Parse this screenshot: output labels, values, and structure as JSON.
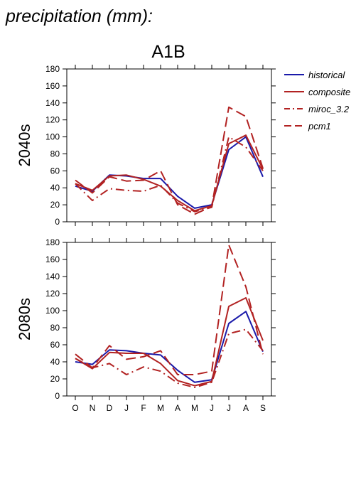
{
  "heading": "precipitation (mm):",
  "chart_data": {
    "type": "line",
    "title": "A1B",
    "categories": [
      "O",
      "N",
      "D",
      "J",
      "F",
      "M",
      "A",
      "M",
      "J",
      "J",
      "A",
      "S"
    ],
    "ylim": [
      0,
      180
    ],
    "yticks": [
      0,
      20,
      40,
      60,
      80,
      100,
      120,
      140,
      160,
      180
    ],
    "legend_position": "right",
    "legend": [
      {
        "name": "historical",
        "color": "#1a1aaa",
        "dash": "solid"
      },
      {
        "name": "composite",
        "color": "#b22222",
        "dash": "solid"
      },
      {
        "name": "miroc_3.2",
        "color": "#b22222",
        "dash": "dashdot"
      },
      {
        "name": "pcm1",
        "color": "#b22222",
        "dash": "longdash"
      }
    ],
    "panels": [
      {
        "label": "2040s",
        "series": [
          {
            "name": "historical",
            "values": [
              42,
              36,
              55,
              54,
              51,
              51,
              30,
              16,
              20,
              85,
              100,
              53
            ]
          },
          {
            "name": "composite",
            "values": [
              45,
              37,
              54,
              55,
              50,
              42,
              25,
              13,
              19,
              92,
              102,
              62
            ]
          },
          {
            "name": "miroc_3.2",
            "values": [
              45,
              25,
              39,
              37,
              36,
              43,
              22,
              12,
              17,
              100,
              88,
              60
            ]
          },
          {
            "name": "pcm1",
            "values": [
              49,
              34,
              53,
              48,
              49,
              60,
              20,
              9,
              18,
              135,
              124,
              63
            ]
          }
        ]
      },
      {
        "label": "2080s",
        "series": [
          {
            "name": "historical",
            "values": [
              40,
              37,
              54,
              53,
              50,
              48,
              30,
              16,
              19,
              85,
              99,
              52
            ]
          },
          {
            "name": "composite",
            "values": [
              44,
              32,
              51,
              50,
              50,
              38,
              18,
              12,
              17,
              105,
              115,
              65
            ]
          },
          {
            "name": "miroc_3.2",
            "values": [
              44,
              33,
              38,
              25,
              34,
              29,
              15,
              10,
              16,
              73,
              78,
              53
            ]
          },
          {
            "name": "pcm1",
            "values": [
              49,
              33,
              59,
              43,
              46,
              53,
              25,
              25,
              29,
              177,
              128,
              49
            ]
          }
        ]
      }
    ]
  }
}
